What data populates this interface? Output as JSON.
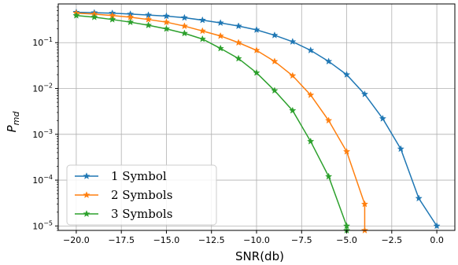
{
  "chart_data": {
    "type": "line",
    "xlabel": "SNR(db)",
    "ylabel": "P_md",
    "ylabel_main": "P",
    "ylabel_sub": "md",
    "yscale": "log",
    "xlim": [
      -21,
      1
    ],
    "ylim": [
      8e-06,
      0.7
    ],
    "grid": true,
    "legend_position": "lower-left",
    "x_ticks": [
      -20,
      -17.5,
      -15,
      -12.5,
      -10,
      -7.5,
      -5,
      -2.5,
      0
    ],
    "x_tick_labels": [
      "−20.0",
      "−17.5",
      "−15.0",
      "−12.5",
      "−10.0",
      "−7.5",
      "−5.0",
      "−2.5",
      "0.0"
    ],
    "y_ticks": [
      0.1,
      0.01,
      0.001,
      0.0001,
      1e-05
    ],
    "y_tick_labels": [
      {
        "base": "10",
        "exp": "−1"
      },
      {
        "base": "10",
        "exp": "−2"
      },
      {
        "base": "10",
        "exp": "−3"
      },
      {
        "base": "10",
        "exp": "−4"
      },
      {
        "base": "10",
        "exp": "−5"
      }
    ],
    "series": [
      {
        "name": "1 Symbol",
        "color": "#1f77b4",
        "x": [
          -20,
          -19,
          -18,
          -17,
          -16,
          -15,
          -14,
          -13,
          -12,
          -11,
          -10,
          -9,
          -8,
          -7,
          -6,
          -5,
          -4,
          -3,
          -2,
          -1,
          0
        ],
        "y": [
          0.46,
          0.45,
          0.44,
          0.42,
          0.4,
          0.38,
          0.35,
          0.31,
          0.27,
          0.23,
          0.19,
          0.145,
          0.105,
          0.068,
          0.039,
          0.02,
          0.0075,
          0.0022,
          0.00048,
          4e-05,
          1e-05
        ]
      },
      {
        "name": "2 Symbols",
        "color": "#ff7f0e",
        "x": [
          -20,
          -19,
          -18,
          -17,
          -16,
          -15,
          -14,
          -13,
          -12,
          -11,
          -10,
          -9,
          -8,
          -7,
          -6,
          -5,
          -4,
          -4
        ],
        "y": [
          0.44,
          0.42,
          0.39,
          0.36,
          0.32,
          0.28,
          0.23,
          0.18,
          0.14,
          0.1,
          0.068,
          0.039,
          0.019,
          0.0072,
          0.002,
          0.00042,
          3e-05,
          8e-06
        ]
      },
      {
        "name": "3 Symbols",
        "color": "#2ca02c",
        "x": [
          -20,
          -19,
          -18,
          -17,
          -16,
          -15,
          -14,
          -13,
          -12,
          -11,
          -10,
          -9,
          -8,
          -7,
          -6,
          -5,
          -5
        ],
        "y": [
          0.39,
          0.36,
          0.32,
          0.28,
          0.24,
          0.2,
          0.16,
          0.12,
          0.075,
          0.045,
          0.022,
          0.009,
          0.0033,
          0.0007,
          0.00012,
          1e-05,
          8e-06
        ]
      }
    ]
  }
}
